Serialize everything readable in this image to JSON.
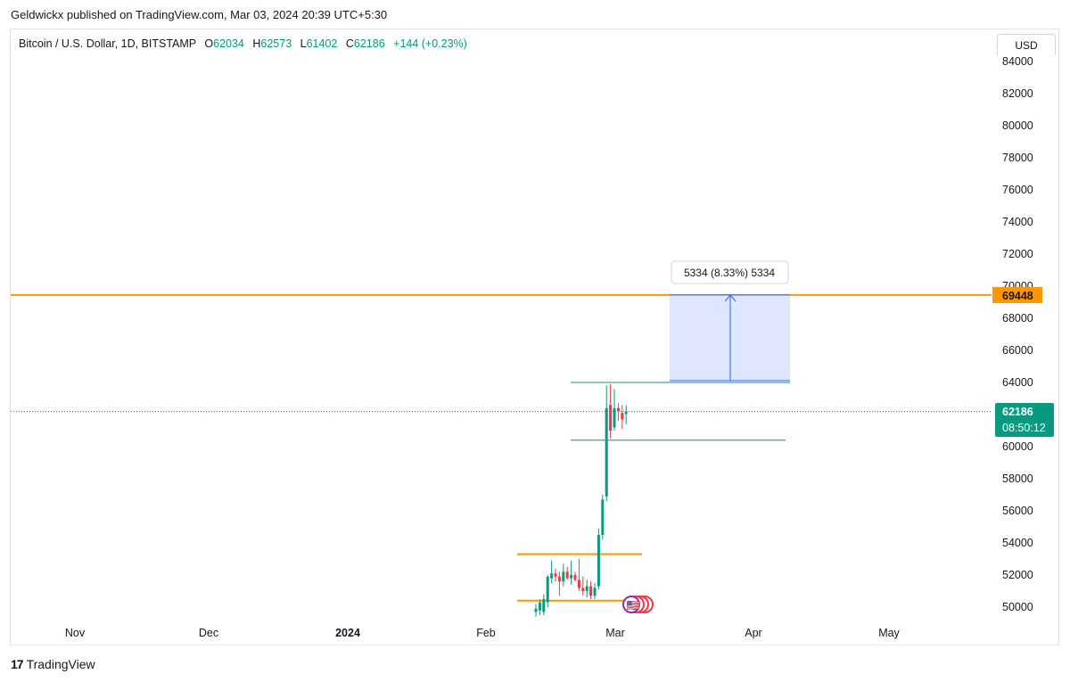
{
  "publisher": "Geldwickx published on TradingView.com, Mar 03, 2024 20:39 UTC+5:30",
  "legend": {
    "symbol": "Bitcoin / U.S. Dollar, 1D, BITSTAMP",
    "open_label": "O",
    "open": "62034",
    "high_label": "H",
    "high": "62573",
    "low_label": "L",
    "low": "61402",
    "close_label": "C",
    "close": "62186",
    "change": "+144 (+0.23%)"
  },
  "currency_button": "USD",
  "colors": {
    "up": "#089981",
    "down": "#f23645",
    "orange": "#ff9800",
    "range_fill": "#dbe3ff",
    "range_stroke": "#2962ff"
  },
  "footer": {
    "brand": "TradingView"
  },
  "chart_data": {
    "type": "candlestick",
    "ylim": [
      49500,
      84000
    ],
    "y_ticks": [
      84000,
      82000,
      80000,
      78000,
      76000,
      74000,
      72000,
      70000,
      68000,
      66000,
      64000,
      62000,
      60000,
      58000,
      56000,
      54000,
      52000,
      50000
    ],
    "x_labels": [
      "Nov",
      "Dec",
      "2024",
      "Feb",
      "Mar",
      "Apr",
      "May"
    ],
    "last_price_label": "62186",
    "countdown_label": "08:50:12",
    "resistance_label": "69448",
    "measure_label": "5334 (8.33%) 5334",
    "horizontal_lines": [
      {
        "name": "resistance",
        "price": 69448,
        "color": "#ff9800"
      },
      {
        "name": "support-upper",
        "price": 53300,
        "color": "#ff9800"
      },
      {
        "name": "support-lower",
        "price": 50400,
        "color": "#ff9800"
      },
      {
        "name": "range-top",
        "price": 64000,
        "color": "#089981"
      },
      {
        "name": "range-bottom",
        "price": 60400,
        "color": "#089981"
      }
    ],
    "measure": {
      "from": 64114,
      "to": 69448
    },
    "candles": [
      {
        "o": 49700,
        "h": 50200,
        "l": 49400,
        "c": 49900
      },
      {
        "o": 49800,
        "h": 50500,
        "l": 49500,
        "c": 50300
      },
      {
        "o": 49700,
        "h": 50800,
        "l": 49500,
        "c": 50500
      },
      {
        "o": 50300,
        "h": 52000,
        "l": 50000,
        "c": 51900
      },
      {
        "o": 51800,
        "h": 52900,
        "l": 51500,
        "c": 52100
      },
      {
        "o": 52100,
        "h": 52400,
        "l": 51600,
        "c": 51900
      },
      {
        "o": 51900,
        "h": 52200,
        "l": 50700,
        "c": 51600
      },
      {
        "o": 51600,
        "h": 52700,
        "l": 51300,
        "c": 52200
      },
      {
        "o": 52200,
        "h": 52500,
        "l": 51700,
        "c": 51800
      },
      {
        "o": 51800,
        "h": 52900,
        "l": 51400,
        "c": 52000
      },
      {
        "o": 52000,
        "h": 52200,
        "l": 51600,
        "c": 51700
      },
      {
        "o": 51700,
        "h": 53000,
        "l": 51000,
        "c": 51200
      },
      {
        "o": 51200,
        "h": 51900,
        "l": 50700,
        "c": 51000
      },
      {
        "o": 51000,
        "h": 51700,
        "l": 50600,
        "c": 51300
      },
      {
        "o": 51300,
        "h": 51600,
        "l": 50500,
        "c": 50700
      },
      {
        "o": 50700,
        "h": 51500,
        "l": 50500,
        "c": 51200
      },
      {
        "o": 51300,
        "h": 54900,
        "l": 51100,
        "c": 54500
      },
      {
        "o": 54500,
        "h": 57000,
        "l": 54200,
        "c": 56700
      },
      {
        "o": 56900,
        "h": 63800,
        "l": 56600,
        "c": 62400
      },
      {
        "o": 62600,
        "h": 63900,
        "l": 60500,
        "c": 61000
      },
      {
        "o": 61200,
        "h": 63600,
        "l": 61000,
        "c": 62400
      },
      {
        "o": 62400,
        "h": 62700,
        "l": 61600,
        "c": 62200
      },
      {
        "o": 62100,
        "h": 62600,
        "l": 61100,
        "c": 61700
      },
      {
        "o": 62034,
        "h": 62573,
        "l": 61402,
        "c": 62186
      }
    ]
  }
}
